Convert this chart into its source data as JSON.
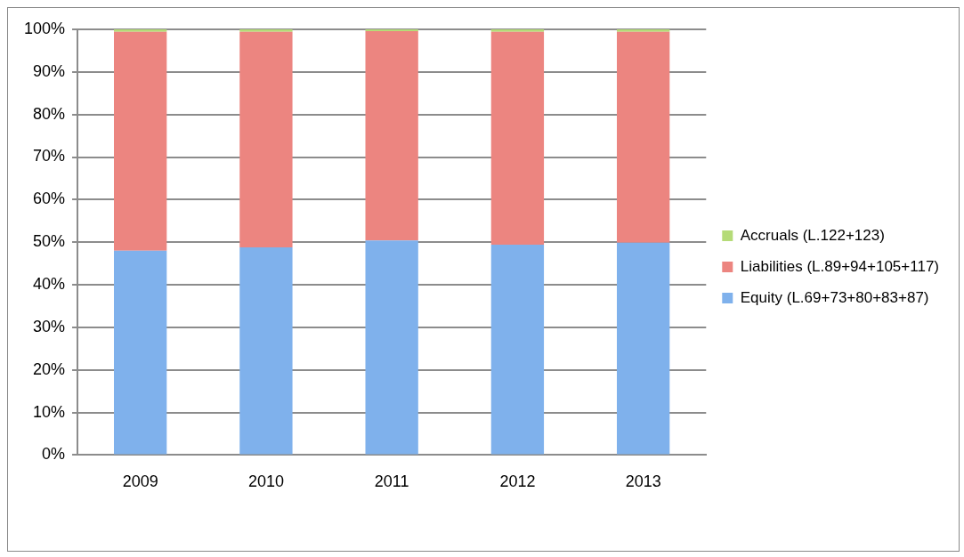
{
  "chart_data": {
    "type": "bar",
    "stacked": true,
    "categories": [
      "2009",
      "2010",
      "2011",
      "2012",
      "2013"
    ],
    "series": [
      {
        "name": "Equity (L.69+73+80+83+87)",
        "color": "#7fb1ec",
        "values": [
          48.0,
          48.8,
          50.4,
          49.4,
          49.9
        ]
      },
      {
        "name": "Liabilities (L.89+94+105+117)",
        "color": "#ec8580",
        "values": [
          51.4,
          50.6,
          49.2,
          50.0,
          49.5
        ]
      },
      {
        "name": "Accruals (L.122+123)",
        "color": "#b5db78",
        "values": [
          0.6,
          0.6,
          0.4,
          0.6,
          0.6
        ]
      }
    ],
    "ylim": [
      0,
      100
    ],
    "yticks": [
      {
        "value": 0,
        "label": "0%"
      },
      {
        "value": 10,
        "label": "10%"
      },
      {
        "value": 20,
        "label": "20%"
      },
      {
        "value": 30,
        "label": "30%"
      },
      {
        "value": 40,
        "label": "40%"
      },
      {
        "value": 50,
        "label": "50%"
      },
      {
        "value": 60,
        "label": "60%"
      },
      {
        "value": 70,
        "label": "70%"
      },
      {
        "value": 80,
        "label": "80%"
      },
      {
        "value": 90,
        "label": "90%"
      },
      {
        "value": 100,
        "label": "100%"
      }
    ],
    "grid": "y",
    "legend": "right"
  }
}
